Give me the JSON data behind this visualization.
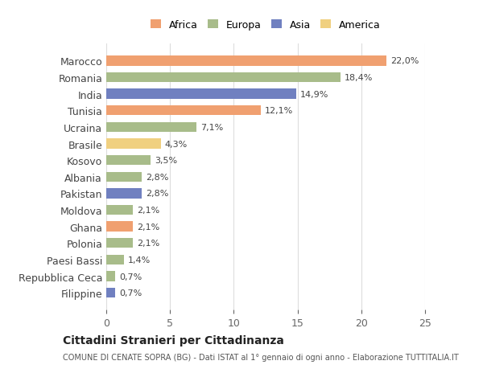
{
  "categories": [
    "Filippine",
    "Repubblica Ceca",
    "Paesi Bassi",
    "Polonia",
    "Ghana",
    "Moldova",
    "Pakistan",
    "Albania",
    "Kosovo",
    "Brasile",
    "Ucraina",
    "Tunisia",
    "India",
    "Romania",
    "Marocco"
  ],
  "values": [
    0.7,
    0.7,
    1.4,
    2.1,
    2.1,
    2.1,
    2.8,
    2.8,
    3.5,
    4.3,
    7.1,
    12.1,
    14.9,
    18.4,
    22.0
  ],
  "continents": [
    "Asia",
    "Europa",
    "Europa",
    "Europa",
    "Africa",
    "Europa",
    "Asia",
    "Europa",
    "Europa",
    "America",
    "Europa",
    "Africa",
    "Asia",
    "Europa",
    "Africa"
  ],
  "colors": {
    "Africa": "#F0A070",
    "Europa": "#A8BC8A",
    "Asia": "#7080C0",
    "America": "#F0D080"
  },
  "labels": [
    "0,7%",
    "0,7%",
    "1,4%",
    "2,1%",
    "2,1%",
    "2,1%",
    "2,8%",
    "2,8%",
    "3,5%",
    "4,3%",
    "7,1%",
    "12,1%",
    "14,9%",
    "18,4%",
    "22,0%"
  ],
  "legend_order": [
    "Africa",
    "Europa",
    "Asia",
    "America"
  ],
  "xlim": [
    0,
    25
  ],
  "xticks": [
    0,
    5,
    10,
    15,
    20,
    25
  ],
  "title": "Cittadini Stranieri per Cittadinanza",
  "subtitle": "COMUNE DI CENATE SOPRA (BG) - Dati ISTAT al 1° gennaio di ogni anno - Elaborazione TUTTITALIA.IT",
  "bg_color": "#ffffff",
  "grid_color": "#dddddd",
  "bar_height": 0.6
}
